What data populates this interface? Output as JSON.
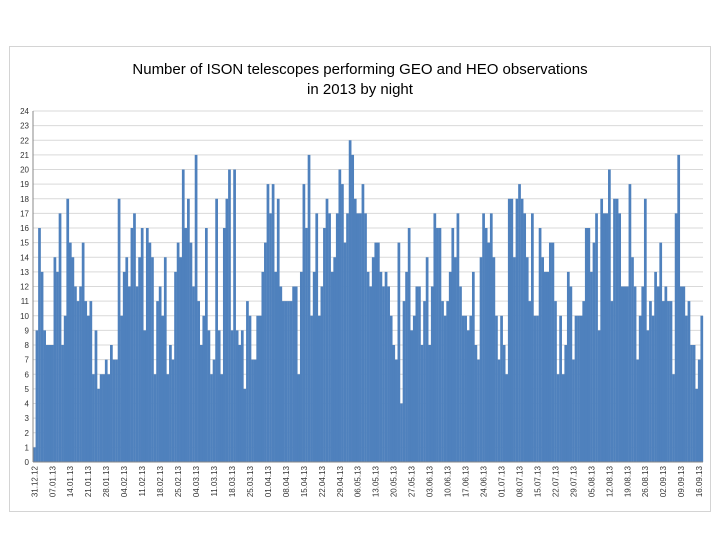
{
  "chart_data": {
    "type": "bar",
    "title": [
      "Number of ISON telescopes performing GEO and HEO observations",
      "in 2013 by night"
    ],
    "xlabel": "",
    "ylabel": "",
    "ylim": [
      0,
      24
    ],
    "yticks": [
      0,
      1,
      2,
      3,
      4,
      5,
      6,
      7,
      8,
      9,
      10,
      11,
      12,
      13,
      14,
      15,
      16,
      17,
      18,
      19,
      20,
      21,
      22,
      23,
      24
    ],
    "grid": true,
    "bar_color": "#4f81bd",
    "x_start": "31.12.12",
    "x_tick_labels": [
      "31.12.12",
      "07.01.13",
      "14.01.13",
      "21.01.13",
      "28.01.13",
      "04.02.13",
      "11.02.13",
      "18.02.13",
      "25.02.13",
      "04.03.13",
      "11.03.13",
      "18.03.13",
      "25.03.13",
      "01.04.13",
      "08.04.13",
      "15.04.13",
      "22.04.13",
      "29.04.13",
      "06.05.13",
      "13.05.13",
      "20.05.13",
      "27.05.13",
      "03.06.13",
      "10.06.13",
      "17.06.13",
      "24.06.13",
      "01.07.13",
      "08.07.13",
      "15.07.13",
      "22.07.13",
      "29.07.13",
      "05.08.13",
      "12.08.13",
      "19.08.13",
      "26.08.13",
      "02.09.13",
      "09.09.13",
      "16.09.13"
    ],
    "values": [
      1,
      9,
      16,
      13,
      9,
      8,
      8,
      8,
      14,
      13,
      17,
      8,
      10,
      18,
      15,
      14,
      12,
      11,
      12,
      15,
      11,
      10,
      11,
      6,
      9,
      5,
      6,
      6,
      7,
      6,
      8,
      7,
      7,
      18,
      10,
      13,
      14,
      12,
      16,
      17,
      12,
      14,
      16,
      9,
      16,
      15,
      14,
      6,
      11,
      12,
      10,
      14,
      6,
      8,
      7,
      13,
      15,
      14,
      20,
      16,
      18,
      15,
      12,
      21,
      11,
      8,
      10,
      16,
      9,
      6,
      7,
      18,
      9,
      6,
      16,
      18,
      20,
      9,
      20,
      9,
      8,
      9,
      5,
      11,
      10,
      7,
      7,
      10,
      10,
      13,
      15,
      19,
      17,
      19,
      13,
      18,
      12,
      11,
      11,
      11,
      11,
      12,
      12,
      6,
      13,
      19,
      16,
      21,
      10,
      13,
      17,
      10,
      12,
      16,
      18,
      17,
      13,
      14,
      17,
      20,
      19,
      15,
      17,
      22,
      21,
      18,
      17,
      17,
      19,
      17,
      13,
      12,
      14,
      15,
      15,
      13,
      12,
      13,
      12,
      10,
      8,
      7,
      15,
      4,
      11,
      13,
      16,
      9,
      10,
      12,
      12,
      8,
      11,
      14,
      8,
      12,
      17,
      16,
      16,
      11,
      10,
      11,
      13,
      16,
      14,
      17,
      12,
      10,
      10,
      9,
      10,
      13,
      8,
      7,
      14,
      17,
      16,
      15,
      17,
      14,
      10,
      7,
      10,
      8,
      6,
      18,
      18,
      14,
      18,
      19,
      18,
      17,
      14,
      11,
      17,
      10,
      10,
      16,
      14,
      13,
      13,
      15,
      15,
      11,
      6,
      10,
      6,
      8,
      13,
      12,
      7,
      10,
      10,
      10,
      11,
      16,
      16,
      13,
      15,
      17,
      9,
      18,
      17,
      17,
      20,
      11,
      18,
      18,
      17,
      12,
      12,
      12,
      19,
      14,
      12,
      7,
      10,
      12,
      18,
      9,
      11,
      10,
      13,
      12,
      15,
      11,
      12,
      11,
      11,
      6,
      17,
      21,
      12,
      12,
      10,
      11,
      8,
      8,
      5,
      7,
      10
    ]
  }
}
